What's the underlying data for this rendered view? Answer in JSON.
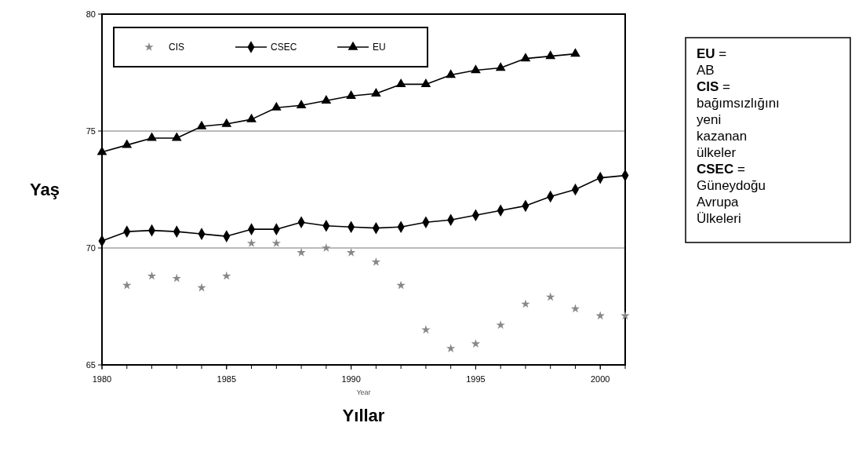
{
  "chart_data": {
    "type": "line",
    "xlabel": "Yıllar",
    "ylabel": "Yaş",
    "x": [
      1980,
      1981,
      1982,
      1983,
      1984,
      1985,
      1986,
      1987,
      1988,
      1989,
      1990,
      1991,
      1992,
      1993,
      1994,
      1995,
      1996,
      1997,
      1998,
      1999,
      2000,
      2001
    ],
    "series": [
      {
        "name": "CIS",
        "type": "scatter",
        "marker": "star",
        "color": "#888888",
        "values": [
          null,
          68.4,
          68.8,
          68.7,
          68.3,
          68.8,
          70.2,
          70.2,
          69.8,
          70.0,
          69.8,
          69.4,
          68.4,
          66.5,
          65.7,
          65.9,
          66.7,
          67.6,
          67.9,
          67.4,
          67.1,
          67.1
        ]
      },
      {
        "name": "CSEC",
        "marker": "diamond",
        "color": "#000000",
        "values": [
          70.3,
          70.7,
          70.75,
          70.7,
          70.6,
          70.5,
          70.8,
          70.8,
          71.1,
          70.95,
          70.9,
          70.85,
          70.9,
          71.1,
          71.2,
          71.4,
          71.6,
          71.8,
          72.2,
          72.5,
          73.0,
          73.1
        ]
      },
      {
        "name": "EU",
        "marker": "triangle",
        "color": "#000000",
        "values": [
          74.1,
          74.4,
          74.7,
          74.7,
          75.2,
          75.3,
          75.5,
          76.0,
          76.1,
          76.3,
          76.5,
          76.6,
          77.0,
          77.0,
          77.4,
          77.6,
          77.7,
          78.1,
          78.2,
          78.3,
          null,
          null
        ]
      }
    ],
    "xlim": [
      1980,
      2001
    ],
    "xticks": [
      1980,
      1985,
      1990,
      1995,
      2000
    ],
    "ylim": [
      65,
      80
    ],
    "yticks": [
      65,
      70,
      75,
      80
    ],
    "grid": "y",
    "legend": "top left",
    "annotations": [
      "Year",
      "EU = AB",
      "CIS = bağımsızlığını yeni kazanan ülkeler",
      "CSEC = Güneydoğu Avrupa Ülkeleri"
    ]
  }
}
